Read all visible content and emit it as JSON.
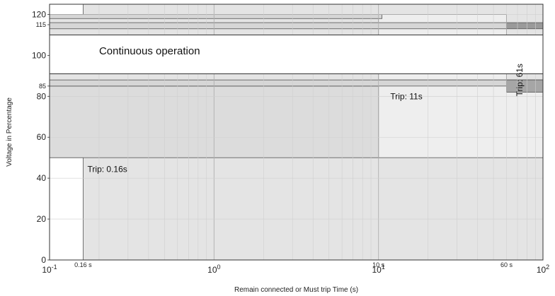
{
  "chart_data": {
    "type": "area",
    "xscale": "log",
    "xlim": [
      0.1,
      100
    ],
    "ylim": [
      0,
      125
    ],
    "xlabel": "Remain connected or Must trip Time (s)",
    "ylabel": "Voltage in Percentage",
    "x_ticks": [
      {
        "value": 0.1,
        "base": "10",
        "exp": "-1"
      },
      {
        "value": 1,
        "base": "10",
        "exp": "0"
      },
      {
        "value": 10,
        "base": "10",
        "exp": "1"
      },
      {
        "value": 100,
        "base": "10",
        "exp": "2"
      }
    ],
    "x_marker_labels": [
      {
        "value": 0.16,
        "label": "0.16 s"
      },
      {
        "value": 10,
        "label": "10 s"
      },
      {
        "value": 60,
        "label": "60 s"
      }
    ],
    "y_ticks": [
      {
        "value": 0,
        "label": "0"
      },
      {
        "value": 20,
        "label": "20"
      },
      {
        "value": 40,
        "label": "40"
      },
      {
        "value": 60,
        "label": "60"
      },
      {
        "value": 80,
        "label": "80"
      },
      {
        "value": 85,
        "label": "85"
      },
      {
        "value": 100,
        "label": "100"
      },
      {
        "value": 115,
        "label": "115"
      },
      {
        "value": 120,
        "label": "120"
      }
    ],
    "regions": [
      {
        "x": [
          0.1,
          100
        ],
        "y": [
          0,
          125
        ],
        "fill": "#e4e4e4"
      },
      {
        "x": [
          0.1,
          0.16
        ],
        "y": [
          0,
          50
        ],
        "fill": "#ffffff"
      },
      {
        "x": [
          0.1,
          0.16
        ],
        "y": [
          120,
          125
        ],
        "fill": "#ffffff"
      },
      {
        "x": [
          10,
          100
        ],
        "y": [
          50,
          88
        ],
        "fill": "#eeeeee"
      },
      {
        "x": [
          10,
          60
        ],
        "y": [
          88,
          120
        ],
        "fill": "#eeeeee"
      },
      {
        "x": [
          0.1,
          10
        ],
        "y": [
          50,
          85
        ],
        "fill": "#dcdcdc"
      },
      {
        "x": [
          0.1,
          10.5
        ],
        "y": [
          118,
          120
        ],
        "fill": "#d6d6d6"
      },
      {
        "x": [
          0.1,
          60
        ],
        "y": [
          113,
          116
        ],
        "fill": "#d6d6d6"
      },
      {
        "x": [
          60,
          100
        ],
        "y": [
          113,
          116
        ],
        "fill": "#9a9a9a"
      },
      {
        "x": [
          0.1,
          100
        ],
        "y": [
          85,
          88
        ],
        "fill": "#d6d6d6"
      },
      {
        "x": [
          60,
          100
        ],
        "y": [
          82,
          88
        ],
        "fill": "#a6a6a6"
      },
      {
        "x": [
          0.1,
          100
        ],
        "y": [
          91,
          110
        ],
        "fill": "#ffffff"
      }
    ],
    "annotations": [
      {
        "text": "Continuous operation",
        "x": 0.2,
        "y": 100.5,
        "rotate": false,
        "size": 15
      },
      {
        "text": "Trip: 11s",
        "x": 11.8,
        "y": 78.5,
        "rotate": false,
        "size": 12
      },
      {
        "text": "Trip: 0.16s",
        "x": 0.17,
        "y": 43,
        "rotate": false,
        "size": 12
      },
      {
        "text": "Trip: 61s",
        "x": 75,
        "y": 80,
        "rotate": true,
        "size": 12
      }
    ]
  }
}
